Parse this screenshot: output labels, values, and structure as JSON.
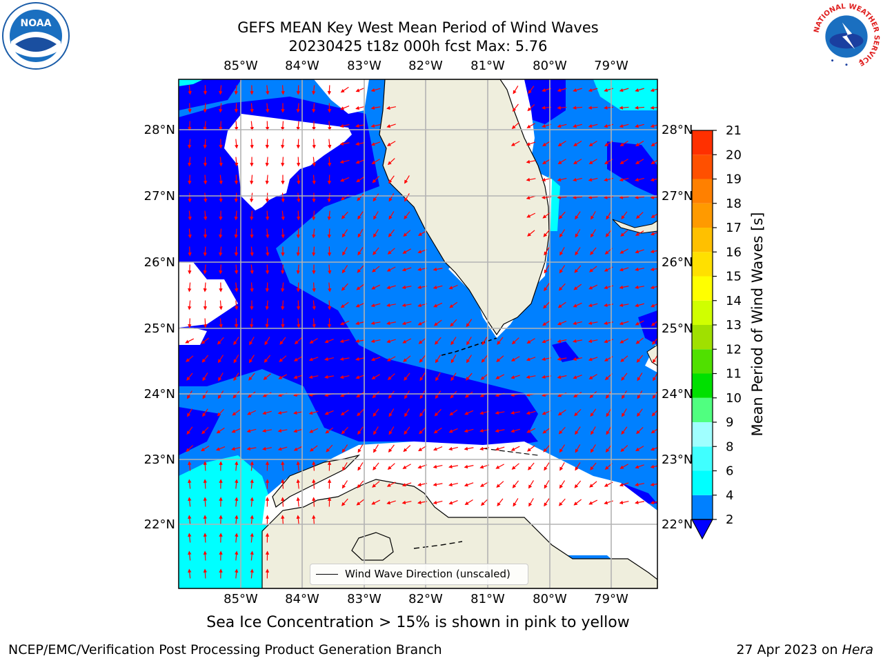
{
  "header": {
    "title_line1": "GEFS MEAN Key West Mean Period of Wind Waves",
    "title_line2": "20230425 t18z 000h fcst   Max: 5.76"
  },
  "logos": {
    "left": "noaa-logo",
    "right": "national-weather-service-logo",
    "right_text": "NATIONAL WEATHER SERVICE"
  },
  "map": {
    "lon_ticks": [
      "85°W",
      "84°W",
      "83°W",
      "82°W",
      "81°W",
      "80°W",
      "79°W"
    ],
    "lat_ticks": [
      "28°N",
      "27°N",
      "26°N",
      "25°N",
      "24°N",
      "23°N",
      "22°N"
    ],
    "grid": true,
    "colors": {
      "land": "#efeedd",
      "no_data": "#ffffff",
      "arrow": "#ff0000",
      "coast": "#000000",
      "grid": "#b3b3b3"
    }
  },
  "legend": {
    "label": "Wind Wave Direction (unscaled)"
  },
  "colorbar": {
    "label": "Mean Period of Wind Waves [s]",
    "ticks": [
      "2",
      "4",
      "6",
      "8",
      "9",
      "10",
      "11",
      "12",
      "13",
      "14",
      "15",
      "16",
      "17",
      "18",
      "19",
      "20",
      "21"
    ],
    "colors": [
      "#0000ff",
      "#0080ff",
      "#00ffff",
      "#40ffff",
      "#a0ffff",
      "#50ff80",
      "#00e000",
      "#50e000",
      "#a0e000",
      "#d0ff00",
      "#ffff00",
      "#ffe000",
      "#ffc000",
      "#ff9a00",
      "#ff8000",
      "#ff5000",
      "#ff3000",
      "#ff0000"
    ]
  },
  "footer": {
    "note": "Sea Ice Concentration > 15% is shown in pink to yellow",
    "left": "NCEP/EMC/Verification Post Processing Product Generation Branch",
    "date": "27 Apr 2023 on",
    "host": "Hera"
  }
}
